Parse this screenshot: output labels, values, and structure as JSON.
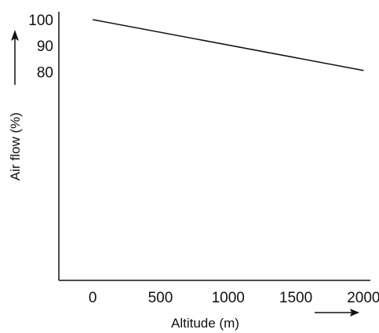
{
  "chart_data": {
    "type": "line",
    "title": "",
    "xlabel": "Altitude (m)",
    "ylabel": "Air flow (%)",
    "x_ticks": [
      0,
      500,
      1000,
      1500,
      2000
    ],
    "y_ticks": [
      80,
      90,
      100
    ],
    "xlim": [
      -250,
      2050
    ],
    "ylim": [
      0,
      103
    ],
    "grid": false,
    "legend": "none",
    "line_color": "#111111",
    "series": [
      {
        "x": [
          0,
          2000
        ],
        "y": [
          100,
          80.5
        ]
      }
    ]
  }
}
